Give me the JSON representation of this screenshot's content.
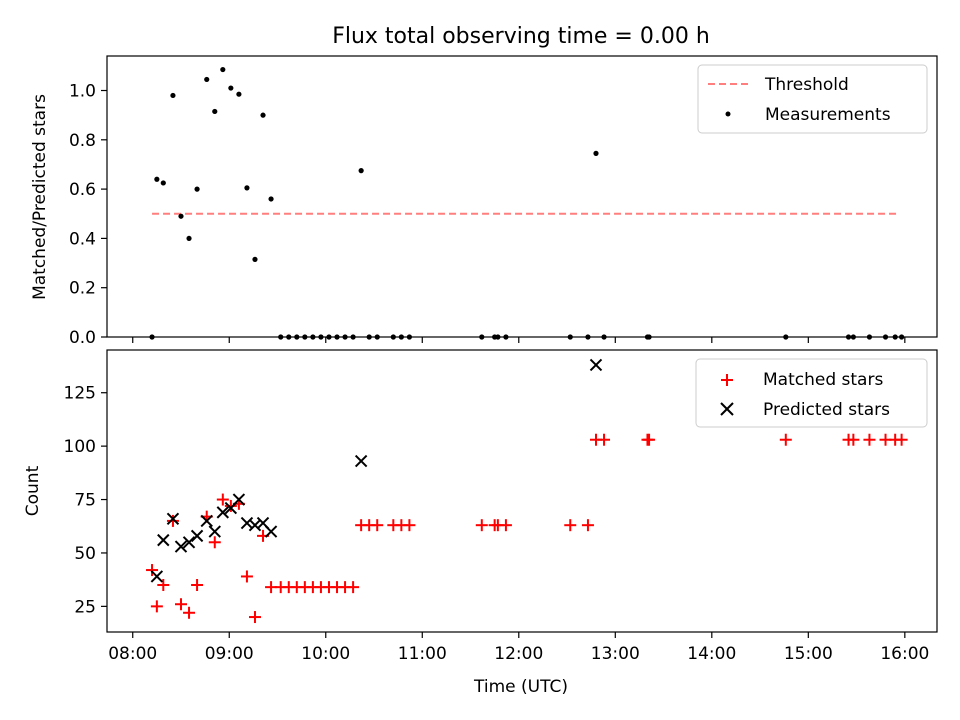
{
  "title": "Flux total observing time = 0.00 h",
  "chart_data": [
    {
      "type": "scatter",
      "ylabel": "Matched/Predicted stars",
      "xlim": [
        "07:44",
        "16:20"
      ],
      "ylim": [
        0,
        1.14
      ],
      "yticks": [
        "0.0",
        "0.2",
        "0.4",
        "0.6",
        "0.8",
        "1.0"
      ],
      "legend_position": "top-right",
      "threshold": {
        "name": "Threshold",
        "value": 0.5,
        "x_start": "08:12",
        "x_end": "15:57",
        "color": "#ff7f7f",
        "style": "dashed"
      },
      "series": [
        {
          "name": "Measurements",
          "color": "#000000",
          "marker": "dot",
          "points": [
            [
              "08:12",
              0.0
            ],
            [
              "08:15",
              0.64
            ],
            [
              "08:19",
              0.625
            ],
            [
              "08:25",
              0.98
            ],
            [
              "08:30",
              0.49
            ],
            [
              "08:35",
              0.4
            ],
            [
              "08:40",
              0.6
            ],
            [
              "08:46",
              1.045
            ],
            [
              "08:51",
              0.915
            ],
            [
              "08:56",
              1.085
            ],
            [
              "09:01",
              1.01
            ],
            [
              "09:06",
              0.985
            ],
            [
              "09:11",
              0.605
            ],
            [
              "09:16",
              0.315
            ],
            [
              "09:21",
              0.9
            ],
            [
              "09:26",
              0.56
            ],
            [
              "09:32",
              0.0
            ],
            [
              "09:37",
              0.0
            ],
            [
              "09:42",
              0.0
            ],
            [
              "09:47",
              0.0
            ],
            [
              "09:52",
              0.0
            ],
            [
              "09:57",
              0.0
            ],
            [
              "10:02",
              0.0
            ],
            [
              "10:07",
              0.0
            ],
            [
              "10:12",
              0.0
            ],
            [
              "10:17",
              0.0
            ],
            [
              "10:22",
              0.675
            ],
            [
              "10:27",
              0.0
            ],
            [
              "10:32",
              0.0
            ],
            [
              "10:42",
              0.0
            ],
            [
              "10:47",
              0.0
            ],
            [
              "10:52",
              0.0
            ],
            [
              "11:37",
              0.0
            ],
            [
              "11:45",
              0.0
            ],
            [
              "11:47",
              0.0
            ],
            [
              "11:52",
              0.0
            ],
            [
              "12:32",
              0.0
            ],
            [
              "12:43",
              0.0
            ],
            [
              "12:48",
              0.745
            ],
            [
              "12:53",
              0.0
            ],
            [
              "13:20",
              0.0
            ],
            [
              "13:21",
              0.0
            ],
            [
              "14:46",
              0.0
            ],
            [
              "15:25",
              0.0
            ],
            [
              "15:28",
              0.0
            ],
            [
              "15:38",
              0.0
            ],
            [
              "15:48",
              0.0
            ],
            [
              "15:54",
              0.0
            ],
            [
              "15:58",
              0.0
            ]
          ]
        }
      ]
    },
    {
      "type": "scatter",
      "ylabel": "Count",
      "xlabel": "Time (UTC)",
      "xlim": [
        "07:44",
        "16:20"
      ],
      "ylim": [
        13,
        145
      ],
      "yticks": [
        "25",
        "50",
        "75",
        "100",
        "125"
      ],
      "xticks": [
        "08:00",
        "09:00",
        "10:00",
        "11:00",
        "12:00",
        "13:00",
        "14:00",
        "15:00",
        "16:00"
      ],
      "legend_position": "top-right",
      "series": [
        {
          "name": "Matched stars",
          "color": "#ff0000",
          "marker": "plus",
          "points": [
            [
              "08:12",
              42
            ],
            [
              "08:15",
              25
            ],
            [
              "08:19",
              35
            ],
            [
              "08:25",
              65
            ],
            [
              "08:30",
              26
            ],
            [
              "08:35",
              22
            ],
            [
              "08:40",
              35
            ],
            [
              "08:46",
              67
            ],
            [
              "08:51",
              55
            ],
            [
              "08:56",
              75
            ],
            [
              "09:01",
              72
            ],
            [
              "09:06",
              73
            ],
            [
              "09:11",
              39
            ],
            [
              "09:16",
              20
            ],
            [
              "09:21",
              58
            ],
            [
              "09:26",
              34
            ],
            [
              "09:32",
              34
            ],
            [
              "09:37",
              34
            ],
            [
              "09:42",
              34
            ],
            [
              "09:47",
              34
            ],
            [
              "09:52",
              34
            ],
            [
              "09:57",
              34
            ],
            [
              "10:02",
              34
            ],
            [
              "10:07",
              34
            ],
            [
              "10:12",
              34
            ],
            [
              "10:17",
              34
            ],
            [
              "10:22",
              63
            ],
            [
              "10:27",
              63
            ],
            [
              "10:32",
              63
            ],
            [
              "10:42",
              63
            ],
            [
              "10:47",
              63
            ],
            [
              "10:52",
              63
            ],
            [
              "11:37",
              63
            ],
            [
              "11:45",
              63
            ],
            [
              "11:47",
              63
            ],
            [
              "11:52",
              63
            ],
            [
              "12:32",
              63
            ],
            [
              "12:43",
              63
            ],
            [
              "12:48",
              103
            ],
            [
              "12:53",
              103
            ],
            [
              "13:20",
              103
            ],
            [
              "13:21",
              103
            ],
            [
              "14:46",
              103
            ],
            [
              "15:25",
              103
            ],
            [
              "15:28",
              103
            ],
            [
              "15:38",
              103
            ],
            [
              "15:48",
              103
            ],
            [
              "15:54",
              103
            ],
            [
              "15:58",
              103
            ]
          ]
        },
        {
          "name": "Predicted stars",
          "color": "#000000",
          "marker": "x",
          "points": [
            [
              "08:15",
              39
            ],
            [
              "08:19",
              56
            ],
            [
              "08:25",
              66
            ],
            [
              "08:30",
              53
            ],
            [
              "08:35",
              55
            ],
            [
              "08:40",
              58
            ],
            [
              "08:46",
              65
            ],
            [
              "08:51",
              60
            ],
            [
              "08:56",
              69
            ],
            [
              "09:01",
              71
            ],
            [
              "09:06",
              75
            ],
            [
              "09:11",
              64
            ],
            [
              "09:16",
              63
            ],
            [
              "09:21",
              64
            ],
            [
              "09:26",
              60
            ],
            [
              "10:22",
              93
            ],
            [
              "12:48",
              138
            ]
          ]
        }
      ]
    }
  ]
}
